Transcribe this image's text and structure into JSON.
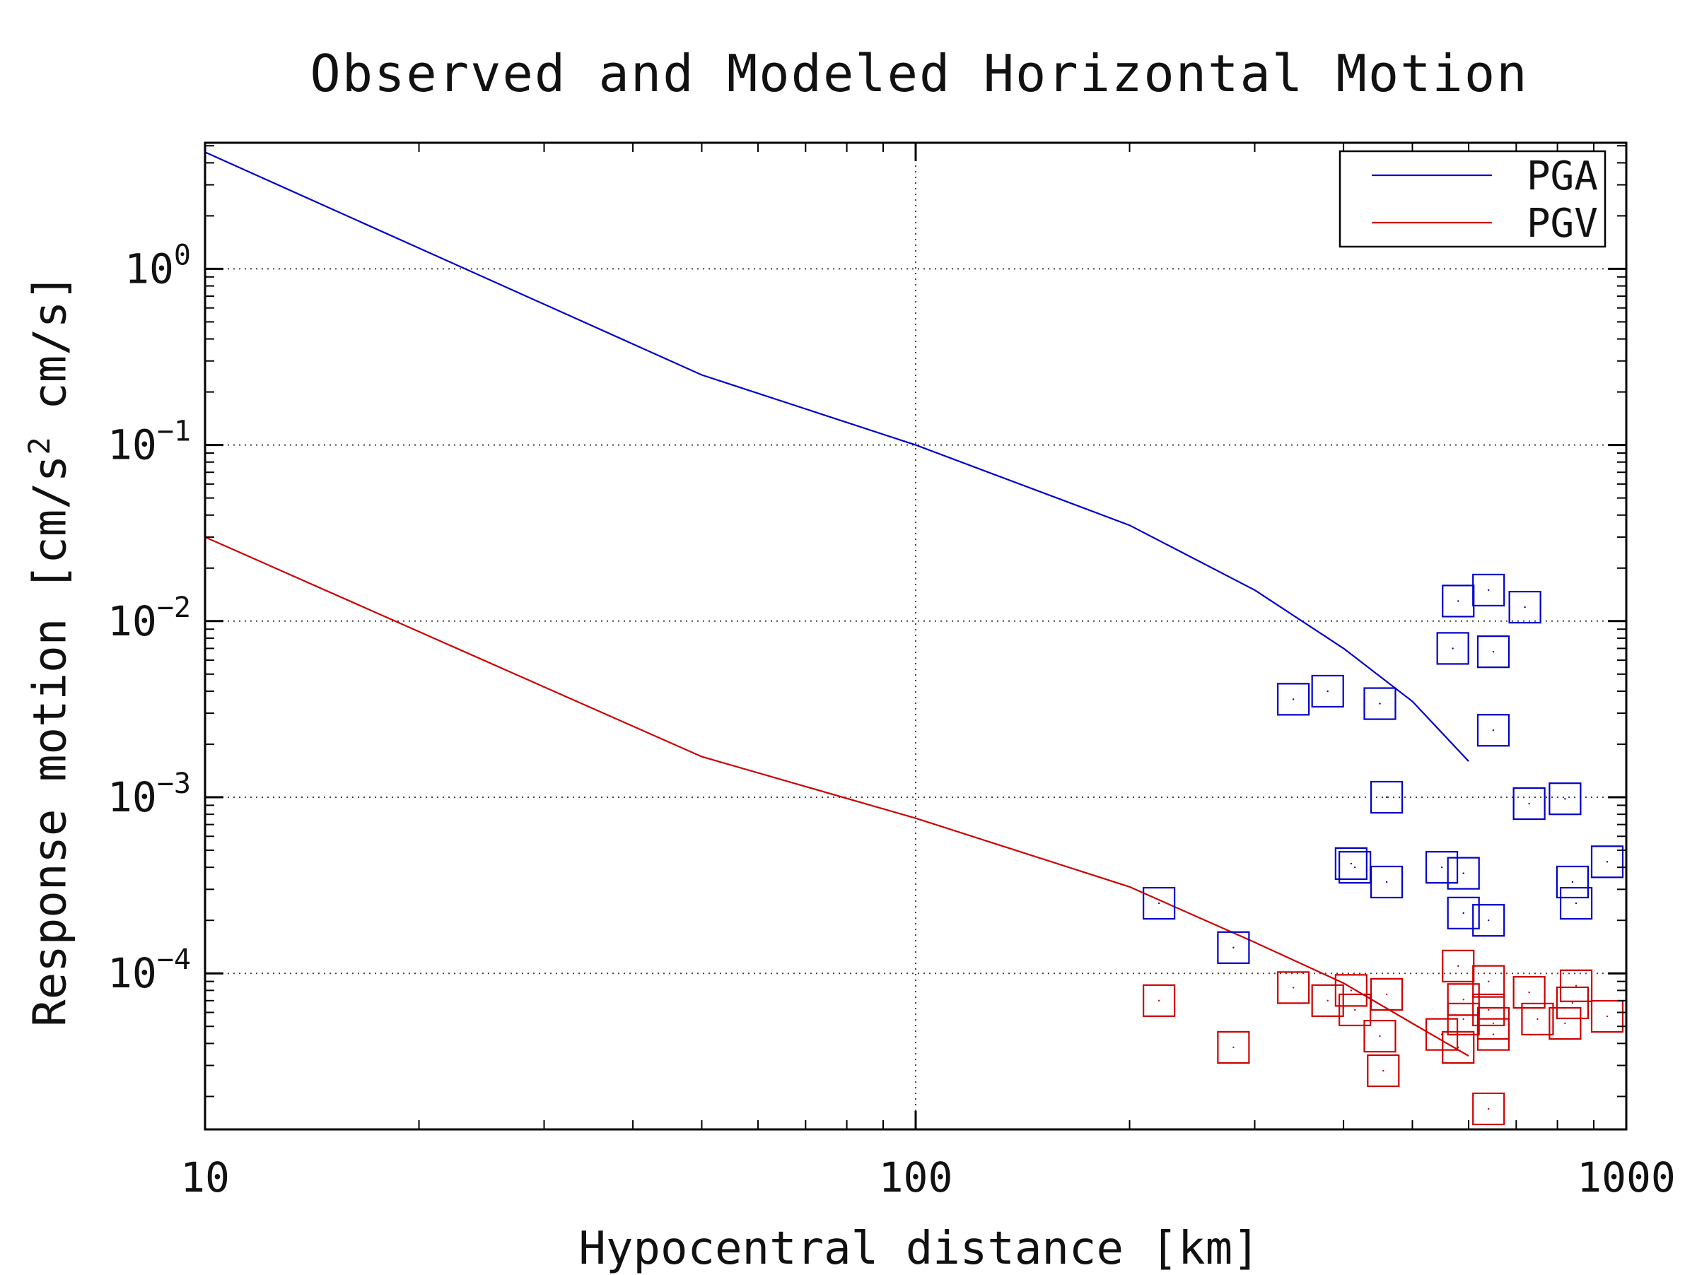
{
  "chart_data": {
    "type": "scatter",
    "title": "Observed and Modeled Horizontal Motion",
    "xlabel": "Hypocentral distance [km]",
    "ylabel": "Response motion [cm/s^2  cm/s]",
    "x_scale": "log",
    "y_scale": "log",
    "xlim": [
      10,
      1000
    ],
    "ylim": [
      1.3e-05,
      5.2
    ],
    "x_ticks": [
      "10",
      "100",
      "1000"
    ],
    "y_ticks": [
      {
        "base": "10",
        "exp": "0"
      },
      {
        "base": "10",
        "exp": "−1"
      },
      {
        "base": "10",
        "exp": "−2"
      },
      {
        "base": "10",
        "exp": "−3"
      },
      {
        "base": "10",
        "exp": "−4"
      }
    ],
    "grid": true,
    "legend_position": "top-right",
    "series": [
      {
        "name": "PGA",
        "color": "#0000cc",
        "line": [
          [
            10,
            4.6
          ],
          [
            50,
            0.25
          ],
          [
            100,
            0.1
          ],
          [
            200,
            0.035
          ],
          [
            300,
            0.015
          ],
          [
            400,
            0.007
          ],
          [
            500,
            0.0035
          ],
          [
            600,
            0.0016
          ]
        ],
        "points": [
          [
            220,
            0.00025
          ],
          [
            280,
            0.00014
          ],
          [
            340,
            0.0036
          ],
          [
            380,
            0.004
          ],
          [
            410,
            0.00042
          ],
          [
            415,
            0.0004
          ],
          [
            450,
            0.0034
          ],
          [
            460,
            0.00033
          ],
          [
            460,
            0.001
          ],
          [
            550,
            0.0004
          ],
          [
            570,
            0.007
          ],
          [
            580,
            0.013
          ],
          [
            590,
            0.00037
          ],
          [
            590,
            0.00022
          ],
          [
            640,
            0.015
          ],
          [
            640,
            0.0002
          ],
          [
            650,
            0.0067
          ],
          [
            650,
            0.0024
          ],
          [
            720,
            0.012
          ],
          [
            730,
            0.00092
          ],
          [
            820,
            0.00098
          ],
          [
            840,
            0.00033
          ],
          [
            850,
            0.00025
          ],
          [
            940,
            0.00043
          ]
        ]
      },
      {
        "name": "PGV",
        "color": "#cc0000",
        "line": [
          [
            10,
            0.03
          ],
          [
            50,
            0.0017
          ],
          [
            100,
            0.00076
          ],
          [
            200,
            0.00031
          ],
          [
            300,
            0.00015
          ],
          [
            400,
            8.8e-05
          ],
          [
            500,
            5.2e-05
          ],
          [
            600,
            3.4e-05
          ]
        ],
        "points": [
          [
            220,
            7e-05
          ],
          [
            280,
            3.8e-05
          ],
          [
            340,
            8.3e-05
          ],
          [
            380,
            7e-05
          ],
          [
            410,
            8e-05
          ],
          [
            415,
            6.2e-05
          ],
          [
            450,
            4.4e-05
          ],
          [
            455,
            2.8e-05
          ],
          [
            460,
            7.6e-05
          ],
          [
            550,
            4.5e-05
          ],
          [
            580,
            3.8e-05
          ],
          [
            580,
            0.00011
          ],
          [
            590,
            7.1e-05
          ],
          [
            590,
            5.5e-05
          ],
          [
            640,
            9e-05
          ],
          [
            640,
            6.2e-05
          ],
          [
            640,
            1.7e-05
          ],
          [
            650,
            5.2e-05
          ],
          [
            650,
            4.5e-05
          ],
          [
            730,
            7.8e-05
          ],
          [
            750,
            5.5e-05
          ],
          [
            820,
            5.2e-05
          ],
          [
            840,
            6.8e-05
          ],
          [
            850,
            8.5e-05
          ],
          [
            940,
            5.7e-05
          ]
        ]
      }
    ]
  }
}
